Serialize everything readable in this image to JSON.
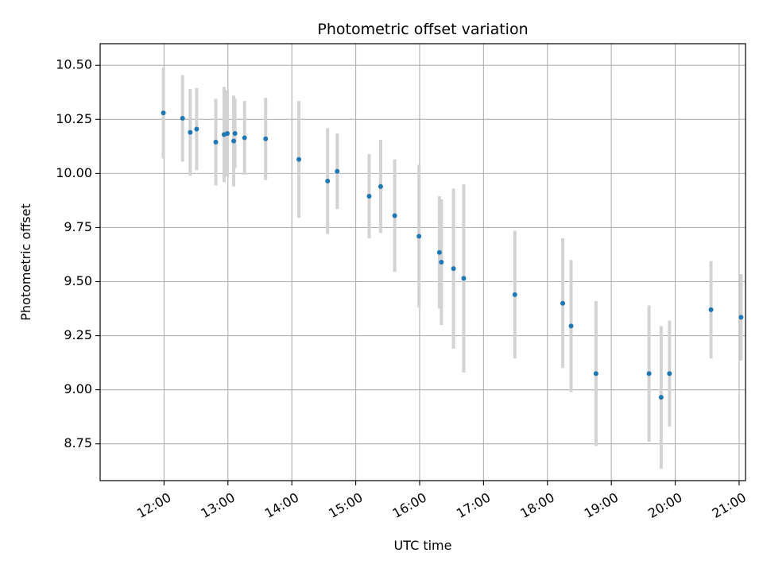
{
  "chart_data": {
    "type": "scatter",
    "title": "Photometric offset variation",
    "xlabel": "UTC time",
    "ylabel": "Photometric offset",
    "grid": true,
    "xlim_hours": [
      11.0,
      21.1
    ],
    "ylim": [
      8.58,
      10.6
    ],
    "x_ticks": [
      {
        "hour": 12,
        "label": "12:00"
      },
      {
        "hour": 13,
        "label": "13:00"
      },
      {
        "hour": 14,
        "label": "14:00"
      },
      {
        "hour": 15,
        "label": "15:00"
      },
      {
        "hour": 16,
        "label": "16:00"
      },
      {
        "hour": 17,
        "label": "17:00"
      },
      {
        "hour": 18,
        "label": "18:00"
      },
      {
        "hour": 19,
        "label": "19:00"
      },
      {
        "hour": 20,
        "label": "20:00"
      },
      {
        "hour": 21,
        "label": "21:00"
      }
    ],
    "y_ticks": [
      {
        "value": 8.75,
        "label": "8.75"
      },
      {
        "value": 9.0,
        "label": "9.00"
      },
      {
        "value": 9.25,
        "label": "9.25"
      },
      {
        "value": 9.5,
        "label": "9.50"
      },
      {
        "value": 9.75,
        "label": "9.75"
      },
      {
        "value": 10.0,
        "label": "10.00"
      },
      {
        "value": 10.25,
        "label": "10.25"
      },
      {
        "value": 10.5,
        "label": "10.50"
      }
    ],
    "series": [
      {
        "name": "Photometric offset",
        "color": "#1f77b4",
        "errorbar_color": "#d3d3d3",
        "points": [
          {
            "x": 11.99,
            "y": 10.28,
            "err": 0.21
          },
          {
            "x": 12.29,
            "y": 10.255,
            "err": 0.2
          },
          {
            "x": 12.41,
            "y": 10.19,
            "err": 0.2
          },
          {
            "x": 12.51,
            "y": 10.205,
            "err": 0.19
          },
          {
            "x": 12.81,
            "y": 10.145,
            "err": 0.2
          },
          {
            "x": 12.94,
            "y": 10.18,
            "err": 0.22
          },
          {
            "x": 12.99,
            "y": 10.185,
            "err": 0.2
          },
          {
            "x": 13.09,
            "y": 10.15,
            "err": 0.21
          },
          {
            "x": 13.11,
            "y": 10.185,
            "err": 0.16
          },
          {
            "x": 13.26,
            "y": 10.165,
            "err": 0.17
          },
          {
            "x": 13.59,
            "y": 10.16,
            "err": 0.19
          },
          {
            "x": 14.11,
            "y": 10.065,
            "err": 0.27
          },
          {
            "x": 14.56,
            "y": 9.965,
            "err": 0.245
          },
          {
            "x": 14.71,
            "y": 10.01,
            "err": 0.175
          },
          {
            "x": 15.21,
            "y": 9.895,
            "err": 0.195
          },
          {
            "x": 15.39,
            "y": 9.94,
            "err": 0.215
          },
          {
            "x": 15.61,
            "y": 9.805,
            "err": 0.26
          },
          {
            "x": 15.99,
            "y": 9.71,
            "err": 0.33
          },
          {
            "x": 16.31,
            "y": 9.635,
            "err": 0.26
          },
          {
            "x": 16.34,
            "y": 9.59,
            "err": 0.29
          },
          {
            "x": 16.53,
            "y": 9.56,
            "err": 0.37
          },
          {
            "x": 16.69,
            "y": 9.515,
            "err": 0.435
          },
          {
            "x": 17.49,
            "y": 9.44,
            "err": 0.295
          },
          {
            "x": 18.24,
            "y": 9.4,
            "err": 0.3
          },
          {
            "x": 18.37,
            "y": 9.295,
            "err": 0.305
          },
          {
            "x": 18.76,
            "y": 9.075,
            "err": 0.335
          },
          {
            "x": 19.59,
            "y": 9.075,
            "err": 0.315
          },
          {
            "x": 19.78,
            "y": 8.965,
            "err": 0.33
          },
          {
            "x": 19.91,
            "y": 9.075,
            "err": 0.245
          },
          {
            "x": 20.56,
            "y": 9.37,
            "err": 0.225
          },
          {
            "x": 21.03,
            "y": 9.335,
            "err": 0.2
          }
        ]
      }
    ]
  }
}
